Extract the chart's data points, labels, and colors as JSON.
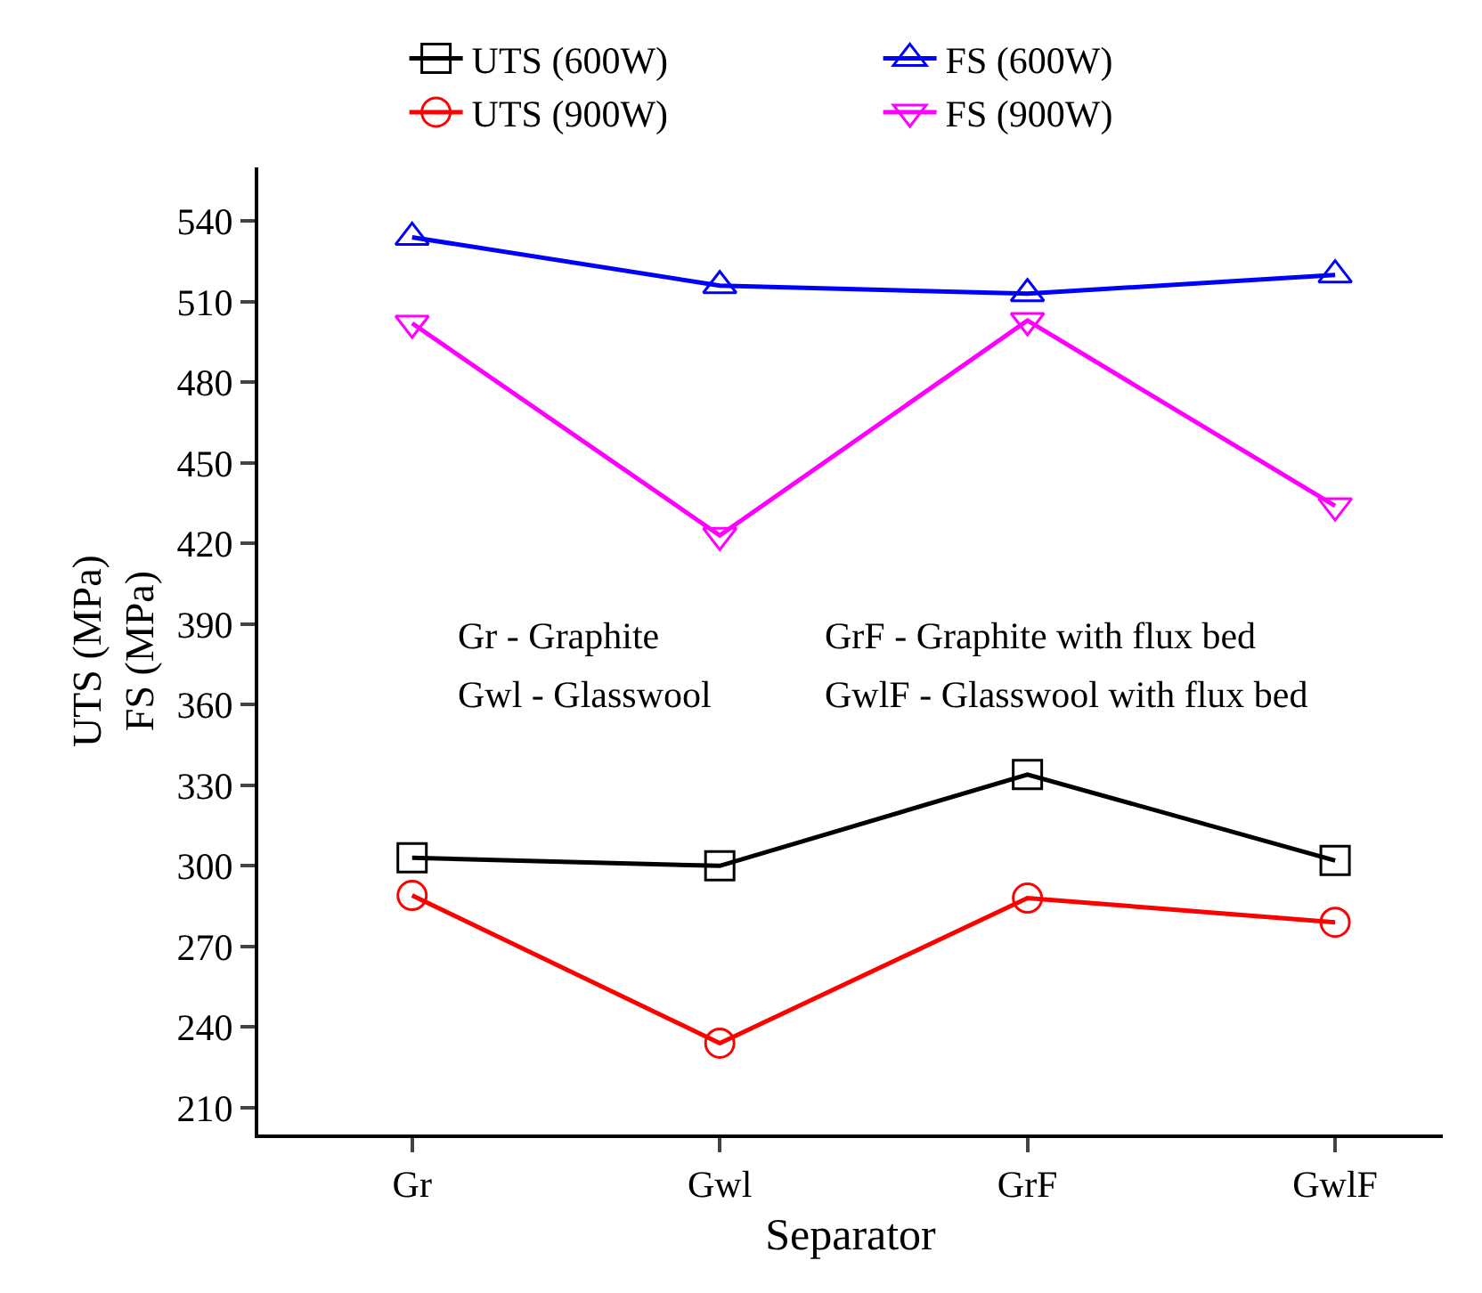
{
  "chart_data": {
    "type": "line",
    "xlabel": "Separator",
    "ylabel": "UTS (MPa)\nFS (MPa)",
    "categories": [
      "Gr",
      "Gwl",
      "GrF",
      "GwlF"
    ],
    "series": [
      {
        "name": "UTS (600W)",
        "color": "#000000",
        "marker": "square",
        "values": [
          303,
          300,
          334,
          302
        ]
      },
      {
        "name": "FS (600W)",
        "color": "#0000ff",
        "marker": "triangle",
        "values": [
          534,
          516,
          513,
          520
        ]
      },
      {
        "name": "UTS (900W)",
        "color": "#ff0000",
        "marker": "circle",
        "values": [
          289,
          234,
          288,
          279
        ]
      },
      {
        "name": "FS (900W)",
        "color": "#ff00ff",
        "marker": "triangle-down",
        "values": [
          502,
          423,
          503,
          434
        ]
      }
    ],
    "annotations": [
      "Gr - Graphite",
      "GrF - Graphite with flux bed",
      "Gwl - Glasswool",
      "GwlF - Glasswool with flux bed"
    ],
    "ylim": [
      200,
      560
    ],
    "yticks": [
      210,
      240,
      270,
      300,
      330,
      360,
      390,
      420,
      450,
      480,
      510,
      540
    ],
    "legend": "top",
    "line_style": "solid"
  }
}
